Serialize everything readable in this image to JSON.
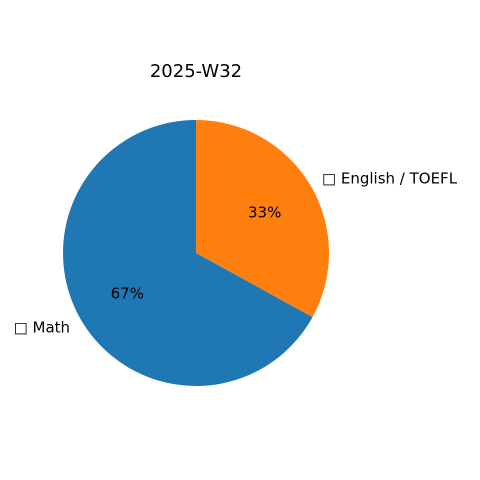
{
  "chart_data": {
    "type": "pie",
    "title": "2025-W32",
    "categories": [
      "□ Math",
      "□ English / TOEFL"
    ],
    "values": [
      67,
      33
    ],
    "labels": [
      "67%",
      "33%"
    ],
    "colors": [
      "#1f77b4",
      "#ff7f0e"
    ],
    "start_angle_deg": 90,
    "direction": "counterclockwise",
    "legend": "none"
  }
}
